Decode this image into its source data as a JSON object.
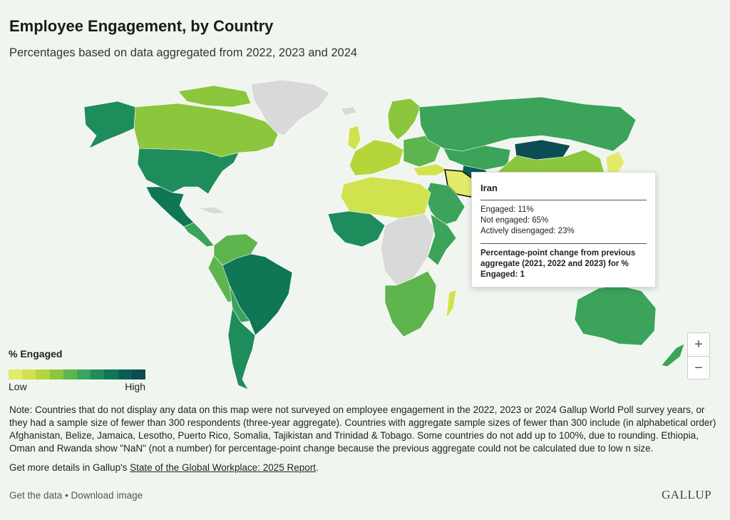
{
  "header": {
    "title": "Employee Engagement, by Country",
    "subtitle": "Percentages based on data aggregated from 2022, 2023 and 2024"
  },
  "legend": {
    "title": "% Engaged",
    "low_label": "Low",
    "high_label": "High",
    "colors": [
      "#e4eb6c",
      "#d0e34e",
      "#b4d63a",
      "#8cc63c",
      "#5eb44d",
      "#3ba35a",
      "#1f8c5c",
      "#0f7656",
      "#0a5d55",
      "#0b4d52"
    ]
  },
  "tooltip": {
    "country": "Iran",
    "engaged": "Engaged: 11%",
    "not_engaged": "Not engaged: 65%",
    "actively_disengaged": "Actively disengaged: 23%",
    "change_text": "Percentage-point change from previous aggregate (2021, 2022 and 2023) for % Engaged: 1"
  },
  "zoom": {
    "in_label": "+",
    "out_label": "−"
  },
  "note": "Note: Countries that do not display any data on this map were not surveyed on employee engagement in the 2022, 2023 or 2024 Gallup World Poll survey years, or they had a sample size of fewer than 300 respondents (three-year aggregate). Countries with aggregate sample sizes of fewer than 300 include (in alphabetical order) Afghanistan, Belize, Jamaica, Lesotho, Puerto Rico, Somalia, Tajikistan and Trinidad & Tobago. Some countries do not add up to 100%, due to rounding. Ethiopia, Oman and Rwanda show \"NaN\" (not a number) for percentage-point change because the previous aggregate could not be calculated due to low n size.",
  "more_details": {
    "prefix": "Get more details in Gallup's ",
    "link_text": "State of the Global Workplace: 2025 Report",
    "suffix": "."
  },
  "footer": {
    "get_data": "Get the data",
    "separator": " • ",
    "download_image": "Download image",
    "logo": "GALLUP"
  },
  "map_colors": {
    "no_data": "#d9d9d9",
    "border": "#ffffff",
    "highlight_border": "#111111"
  }
}
